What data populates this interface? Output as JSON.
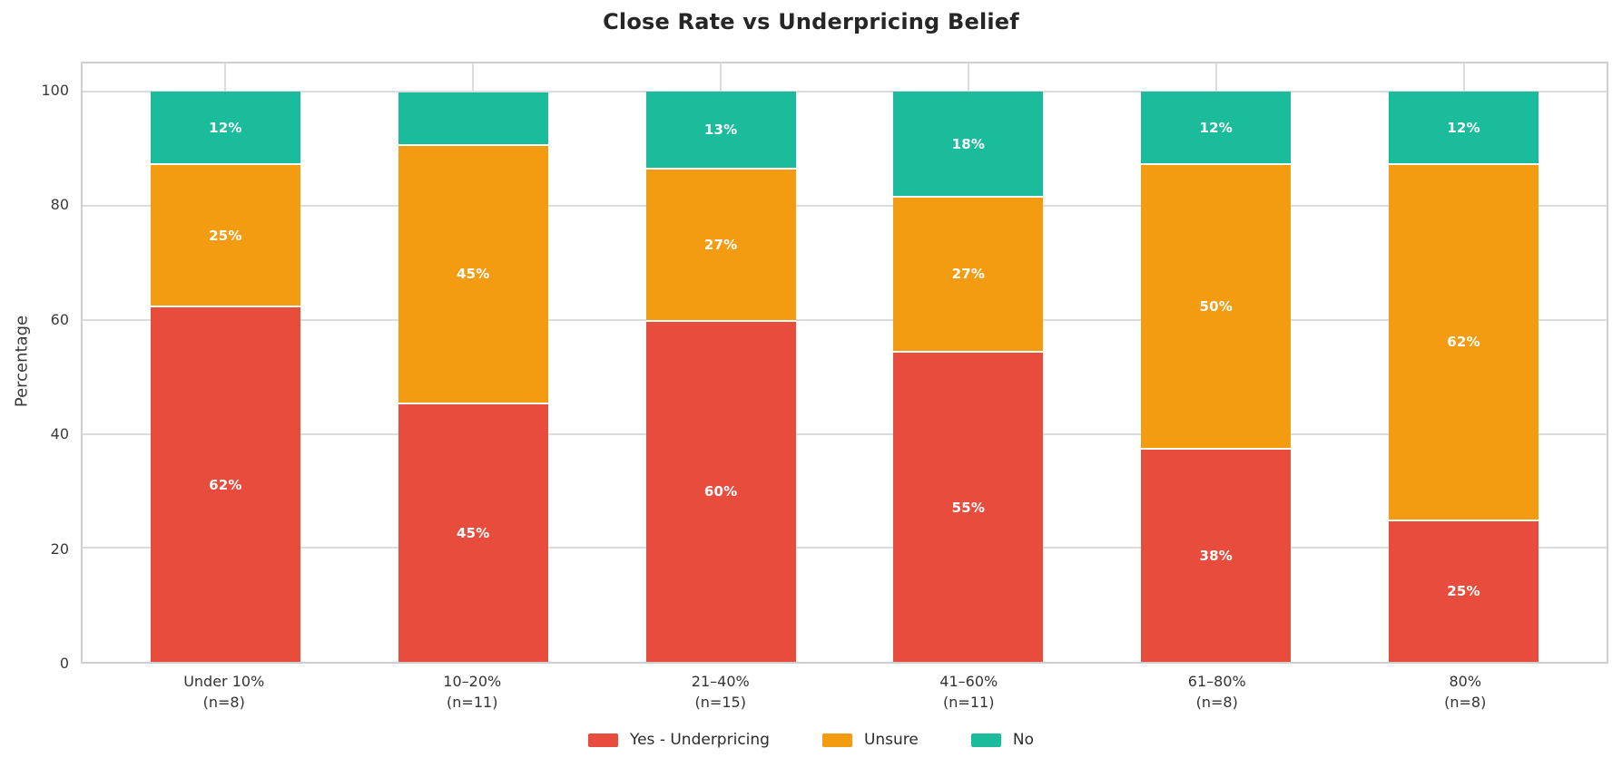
{
  "chart_data": {
    "type": "bar",
    "subtype": "stacked-percentage",
    "title": "Close Rate vs Underpricing Belief",
    "xlabel": "",
    "ylabel": "Percentage",
    "ylim": [
      0,
      105
    ],
    "yticks": [
      0,
      20,
      40,
      60,
      80,
      100
    ],
    "grid": true,
    "legend_position": "bottom-center",
    "background_color": "#ffffff",
    "grid_color": "#dcdcdc",
    "categories": [
      {
        "line1": "Under 10%",
        "line2": "(n=8)"
      },
      {
        "line1": "10–20%",
        "line2": "(n=11)"
      },
      {
        "line1": "21–40%",
        "line2": "(n=15)"
      },
      {
        "line1": "41–60%",
        "line2": "(n=11)"
      },
      {
        "line1": "61–80%",
        "line2": "(n=8)"
      },
      {
        "line1": "80%",
        "line2": "(n=8)"
      }
    ],
    "series": [
      {
        "name": "Yes - Underpricing",
        "color": "#e74c3c",
        "values": [
          62.5,
          45.45,
          60.0,
          54.55,
          37.5,
          25.0
        ],
        "labels": [
          "62%",
          "45%",
          "60%",
          "55%",
          "38%",
          "25%"
        ]
      },
      {
        "name": "Unsure",
        "color": "#f39c12",
        "values": [
          25.0,
          45.45,
          26.67,
          27.27,
          50.0,
          62.5
        ],
        "labels": [
          "25%",
          "45%",
          "27%",
          "27%",
          "50%",
          "62%"
        ]
      },
      {
        "name": "No",
        "color": "#1abc9c",
        "values": [
          12.5,
          9.09,
          13.33,
          18.18,
          12.5,
          12.5
        ],
        "labels": [
          "12%",
          null,
          "13%",
          "18%",
          "12%",
          "12%"
        ]
      }
    ]
  }
}
